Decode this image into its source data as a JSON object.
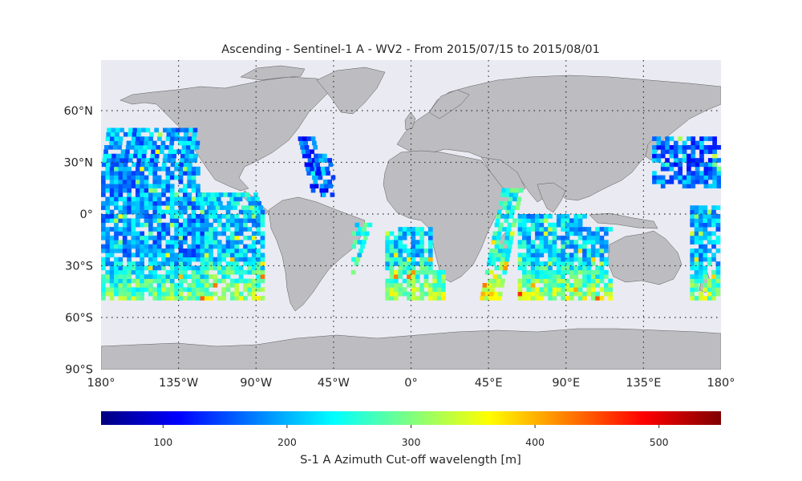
{
  "title": "Ascending - Sentinel-1 A - WV2 - From 2015/07/15 to 2015/08/01",
  "map": {
    "lat_ticks": [
      {
        "lat": 60,
        "label": "60°N"
      },
      {
        "lat": 30,
        "label": "30°N"
      },
      {
        "lat": 0,
        "label": "0°"
      },
      {
        "lat": -30,
        "label": "30°S"
      },
      {
        "lat": -60,
        "label": "60°S"
      },
      {
        "lat": -90,
        "label": "90°S"
      }
    ],
    "lon_ticks": [
      {
        "lon": -180,
        "label": "180°"
      },
      {
        "lon": -135,
        "label": "135°W"
      },
      {
        "lon": -90,
        "label": "90°W"
      },
      {
        "lon": -45,
        "label": "45°W"
      },
      {
        "lon": 0,
        "label": "0°"
      },
      {
        "lon": 45,
        "label": "45°E"
      },
      {
        "lon": 90,
        "label": "90°E"
      },
      {
        "lon": 135,
        "label": "135°E"
      },
      {
        "lon": 180,
        "label": "180°"
      }
    ],
    "ocean_color": "#eaeaf2",
    "land_color": "#bdbdc1",
    "swaths": [
      {
        "region": "east-pacific",
        "lon_range": [
          -180,
          -85
        ],
        "lat_range": [
          -50,
          50
        ],
        "dominant": "blue-cyan north, green-yellow south"
      },
      {
        "region": "north-atlantic",
        "lon_range": [
          -60,
          -35
        ],
        "lat_range": [
          0,
          45
        ],
        "dominant": "blue"
      },
      {
        "region": "south-atlantic",
        "lon_range": [
          -40,
          20
        ],
        "lat_range": [
          -50,
          5
        ],
        "dominant": "blue to yellow south"
      },
      {
        "region": "indian-ocean",
        "lon_range": [
          50,
          115
        ],
        "lat_range": [
          -50,
          15
        ],
        "dominant": "blue-cyan-green"
      },
      {
        "region": "west-pacific",
        "lon_range": [
          140,
          180
        ],
        "lat_range": [
          -50,
          45
        ],
        "dominant": "blue-cyan"
      }
    ]
  },
  "colorbar": {
    "min": 50,
    "max": 550,
    "ticks": [
      100,
      200,
      300,
      400,
      500
    ],
    "colormap": "jet",
    "label": "S-1 A Azimuth Cut-off wavelength [m]"
  }
}
